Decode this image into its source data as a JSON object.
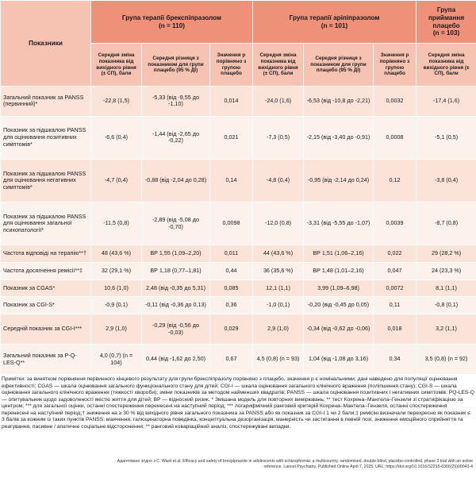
{
  "table": {
    "header": {
      "label_col": "Показники",
      "group1_title": "Група терапії брекспіпразолом",
      "group1_n": "(n = 110)",
      "group2_title": "Група терапії аріпіпразолом",
      "group2_n": "(n = 101)",
      "group3_title": "Група приймання плацебо",
      "group3_n": "(n = 103)",
      "sub_mean_change": "Середня зміна показника від вихідного рівня (± СП), бали",
      "sub_mean_diff": "Середня різниця з показником для групи плацебо (95 % ДІ)",
      "sub_p": "Значення р порівняно з групою плацебо",
      "sub_mean_change_placebo": "Середня зміна показника від вихідного рівня (± СП), бали"
    },
    "rows": [
      {
        "label": "Загальний показник за PANSS (первинний)*",
        "b_mean": "-22,8 (1,5)",
        "b_diff": "-5,33 (від -9,55 до -1,10)",
        "b_p": "0,014",
        "a_mean": "-24,0 (1,6)",
        "a_diff": "-6,53 (від -10,8 до -2,21)",
        "a_p": "0,0032",
        "p_mean": "-17,4 (1,6)"
      },
      {
        "label": "Показник за підшкалою PANSS для оцінювання позитивних симптомів*",
        "b_mean": "-6,6 (0,4)",
        "b_diff": "-1,44 (від -2,65 до -0,22)",
        "b_p": "0,021",
        "a_mean": "-7,3 (0,5)",
        "a_diff": "-2,15 (від -3,40 до -0,91)",
        "a_p": "0,0008",
        "p_mean": "-5,1 (0,5)"
      },
      {
        "label": "Показник за підшкалою PANSS для оцінювання негативних симптомів*",
        "b_mean": "-4,7 (0,4)",
        "b_diff": "-0,88 (від -2,04 до 0,28)",
        "b_p": "0,14",
        "a_mean": "-4,8 (0,4)",
        "a_diff": "-0,95 (від -2,14 до 0,24)",
        "a_p": "0,12",
        "p_mean": "-3,8 (0,4)"
      },
      {
        "label": "Показник за підшкалою PANSS для оцінювання загальної психопатології*",
        "b_mean": "-11,5 (0,8)",
        "b_diff": "-2,89 (від -5,08 до -0,70)",
        "b_p": "0,0098",
        "a_mean": "-12,0 (0,8)",
        "a_diff": "-3,31 (від -5,55 до -1,07)",
        "a_p": "0,0039",
        "p_mean": "-8,7 (0,8)"
      },
      {
        "label": "Частота відповіді на терапію**†",
        "b_mean": "48 (43,6 %)",
        "b_diff": "ВР 1,55 (1,09–2,20)",
        "b_p": "0,011",
        "a_mean": "44 (43,6 %)",
        "a_diff": "ВР 1,51 (1,06–2,16)",
        "a_p": "0,022",
        "p_mean": "29 (28,2 %)"
      },
      {
        "label": "Частота досягнення ремісії**‡",
        "b_mean": "32 (29,1 %)",
        "b_diff": "ВР 1,18 (0,77–1,81)",
        "b_p": "0,44",
        "a_mean": "36 (35,6 %)",
        "a_diff": "ВР 1,48 (1,01–2,16)",
        "a_p": "0,047",
        "p_mean": "24 (23,3 %)"
      },
      {
        "label": "Показник за CGAS*",
        "b_mean": "10,6 (1,0)",
        "b_diff": "2,48 (від -0,35 до 5,31)",
        "b_p": "0,085",
        "a_mean": "12,1 (1,1)",
        "a_diff": "3,99 (1,09–6,98)",
        "a_p": "0,0072",
        "p_mean": "8,1 (1,1)"
      },
      {
        "label": "Показник за CGI-S*",
        "b_mean": "-0,9 (0,1)",
        "b_diff": "-0,11 (від -0,36 до 0,13)",
        "b_p": "0,36",
        "a_mean": "-1,0 (0,1)",
        "a_diff": "-0,20 (від -0,45 до 0,05)",
        "a_p": "0,11",
        "p_mean": "-0,8 (0,1)"
      },
      {
        "label": "Середній показник за CGI-I***",
        "b_mean": "2,9 (1,0)",
        "b_diff": "-0,29 (від -0,56 до -0,03)",
        "b_p": "0,029",
        "a_mean": "2,9 (1,0)",
        "a_diff": "-0,34 (від -0,62 до -0,06)",
        "a_p": "0,018",
        "p_mean": "3,2 (1,1)"
      },
      {
        "label": "Загальний показник за P-Q-LES-Q**",
        "b_mean": "4,0 (0,7) (n = 104)",
        "b_diff": "0,44 (від -1,62 до 2,50)",
        "b_p": "0,67",
        "a_mean": "4,5 (0,8) (n = 93)",
        "a_diff": "1,04 (від -1,08 до 3,16)",
        "a_p": "0,34",
        "p_mean": "3,5 (0,8) (n = 92)"
      }
    ]
  },
  "notes": "Примітки: за винятком порівняння первинного кінцевого результату для групи брекспіпразолу порівняно з плацебо, значення р є номінальними; дані наведено для популяції оцінювання ефективності; CGAS — шкала оцінювання загального функціонального стану для дітей; CGI-I — шкала оцінювання загального клінічного враження (поліпшення стану); CGI-S — шкала оцінювання загального клінічного враження (тяжкості хвороби); зміни показників за методом найменших квадратів; PANSS — шкала оцінювання позитивних і негативних симптомів; PQ-LES-Q — опитувальник щодо задоволеності якістю життя для дітей; ВР — відносний ризик. * Змішана модель для повторних вимірювань; ** тест Кохрена–Мантела–Гензеля зі стратифікацією за центром; *** для загальної оцінки, останні спостереження перенесені на наступний період; *** логарифмічний ранговий критерій Кохрена–Мантела–Гензеля, останні спостереження перенесені на наступний період;† зниження на ≥ 30 % від вихідного рівня загального показника за PANSS або як показник за CGI-I 1 чи 2 бали;‡ ремісію визначали перехресно як показник ≤ 3 балів за кожним із таких пунктів PANSS: маячення, галюцинаторна поведінка, концептуальна дезорганізація, манерність чи застигання в певній позі, зниження емоційного сприйняття та реагування, пасивне / апатичне соціальне відсторонення; ** ранговий коваріаційний аналіз, спостережувані випадки.",
  "source": "Адаптовано згідно з C. Ward et al. Efficacy and safety of brexpiprazole in adolescents with schizophrenia: a multicountry, randomised, double-blind, placebo-controlled, phase 3 trial with an active reference. Lancet Psychiatry. Published Online April 7, 2025. URL: https://doi.org/10.1016/S2215-0366(25)00043-4"
}
